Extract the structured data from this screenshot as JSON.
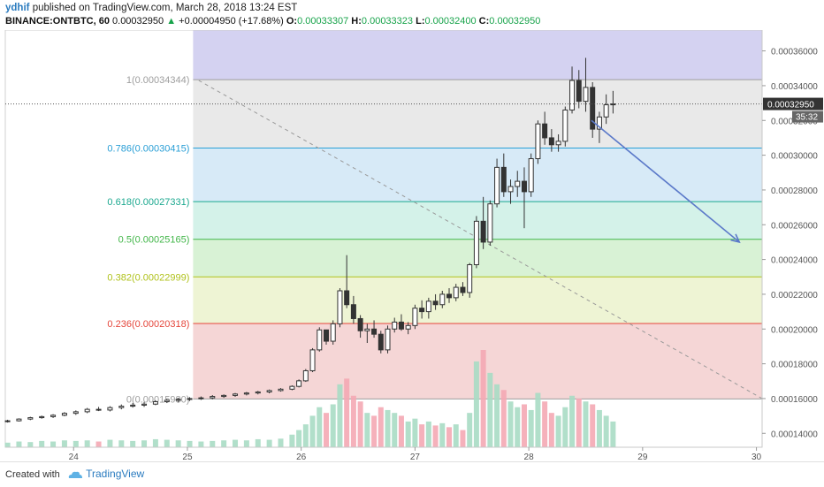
{
  "header": {
    "user": "ydhif",
    "published_text": "published on TradingView.com, March 28, 2018 13:24 EST",
    "symbol": "BINANCE:ONTBTC, 60",
    "last_price": "0.00032950",
    "change": "+0.00004950 (+17.68%)",
    "o_label": "O:",
    "o_value": "0.00033307",
    "h_label": "H:",
    "h_value": "0.00033323",
    "l_label": "L:",
    "l_value": "0.00032400",
    "c_label": "C:",
    "c_value": "0.00032950"
  },
  "footer": {
    "created_with": "Created with",
    "brand": "TradingView"
  },
  "chart_data": {
    "type": "candlestick",
    "y_range": [
      0.000132,
      0.000372
    ],
    "x_range": [
      23.4,
      30.05
    ],
    "y_ticks": [
      "0.00014000",
      "0.00016000",
      "0.00018000",
      "0.00020000",
      "0.00022000",
      "0.00024000",
      "0.00026000",
      "0.00028000",
      "0.00030000",
      "0.00032000",
      "0.00034000",
      "0.00036000"
    ],
    "y_tick_values": [
      0.00014,
      0.00016,
      0.00018,
      0.0002,
      0.00022,
      0.00024,
      0.00026,
      0.00028,
      0.0003,
      0.00032,
      0.00034,
      0.00036
    ],
    "x_ticks": [
      "24",
      "25",
      "26",
      "27",
      "28",
      "29",
      "30"
    ],
    "x_tick_values": [
      24,
      25,
      26,
      27,
      28,
      29,
      30
    ],
    "price_label": "0.00032950",
    "price_value": 0.0003295,
    "countdown_label": "35:32",
    "fibonacci": {
      "x_start": 25.05,
      "x_end": 30.05,
      "levels": [
        {
          "label": "1(0.00034344)",
          "value": 0.00034344,
          "color": "#9e9e9e"
        },
        {
          "label": "0.786(0.00030415)",
          "value": 0.00030415,
          "color": "#2a9fd6"
        },
        {
          "label": "0.618(0.00027331)",
          "value": 0.00027331,
          "color": "#1ba88f"
        },
        {
          "label": "0.5(0.00025165)",
          "value": 0.00025165,
          "color": "#42b649"
        },
        {
          "label": "0.382(0.00022999)",
          "value": 0.00022999,
          "color": "#b0c21c"
        },
        {
          "label": "0.236(0.00020318)",
          "value": 0.00020318,
          "color": "#e5463b"
        },
        {
          "label": "0(0.00015980)",
          "value": 0.0001598,
          "color": "#9e9e9e"
        }
      ],
      "zones": [
        {
          "top": 0.000372,
          "bottom": 0.00034344,
          "color": "#d4d2f1"
        },
        {
          "top": 0.00034344,
          "bottom": 0.00030415,
          "color": "#e9e9e9"
        },
        {
          "top": 0.00030415,
          "bottom": 0.00027331,
          "color": "#d7eaf7"
        },
        {
          "top": 0.00027331,
          "bottom": 0.00025165,
          "color": "#d4f2e9"
        },
        {
          "top": 0.00025165,
          "bottom": 0.00022999,
          "color": "#d8f2d5"
        },
        {
          "top": 0.00022999,
          "bottom": 0.00020318,
          "color": "#eef4d4"
        },
        {
          "top": 0.00020318,
          "bottom": 0.0001598,
          "color": "#f5d6d6"
        }
      ]
    },
    "trend_line": {
      "from": [
        25.1,
        0.000343
      ],
      "to": [
        30.05,
        0.00016
      ]
    },
    "arrow": {
      "from": [
        28.55,
        0.00032
      ],
      "to": [
        29.85,
        0.00025
      ]
    },
    "candles": [
      [
        23.42,
        0.0001468,
        0.0001478,
        0.0001462,
        0.0001472
      ],
      [
        23.52,
        0.0001472,
        0.0001486,
        0.0001468,
        0.0001482
      ],
      [
        23.62,
        0.0001482,
        0.0001495,
        0.0001476,
        0.000149
      ],
      [
        23.72,
        0.000149,
        0.0001502,
        0.0001484,
        0.0001496
      ],
      [
        23.82,
        0.0001496,
        0.000151,
        0.0001488,
        0.0001504
      ],
      [
        23.92,
        0.0001504,
        0.0001522,
        0.0001498,
        0.0001515
      ],
      [
        24.02,
        0.0001515,
        0.0001532,
        0.0001506,
        0.0001524
      ],
      [
        24.12,
        0.0001524,
        0.0001546,
        0.0001516,
        0.0001538
      ],
      [
        24.22,
        0.0001538,
        0.0001552,
        0.0001528,
        0.0001534
      ],
      [
        24.32,
        0.0001534,
        0.0001556,
        0.0001526,
        0.0001548
      ],
      [
        24.42,
        0.0001548,
        0.0001566,
        0.0001538,
        0.0001556
      ],
      [
        24.52,
        0.0001556,
        0.0001574,
        0.0001548,
        0.0001562
      ],
      [
        24.62,
        0.0001562,
        0.000158,
        0.0001552,
        0.0001568
      ],
      [
        24.72,
        0.0001568,
        0.000159,
        0.0001562,
        0.0001582
      ],
      [
        24.82,
        0.0001582,
        0.0001598,
        0.0001574,
        0.000159
      ],
      [
        24.92,
        0.000159,
        0.0001604,
        0.0001578,
        0.0001596
      ],
      [
        25.02,
        0.0001596,
        0.0001608,
        0.0001586,
        0.00016
      ],
      [
        25.12,
        0.00016,
        0.0001612,
        0.0001592,
        0.0001604
      ],
      [
        25.22,
        0.0001604,
        0.000162,
        0.0001596,
        0.0001612
      ],
      [
        25.32,
        0.0001612,
        0.0001624,
        0.0001604,
        0.0001618
      ],
      [
        25.42,
        0.0001618,
        0.0001632,
        0.000161,
        0.0001626
      ],
      [
        25.52,
        0.0001626,
        0.0001638,
        0.0001618,
        0.0001632
      ],
      [
        25.62,
        0.0001632,
        0.0001644,
        0.0001624,
        0.0001638
      ],
      [
        25.72,
        0.0001638,
        0.0001652,
        0.000163,
        0.0001646
      ],
      [
        25.82,
        0.0001646,
        0.000166,
        0.000164,
        0.0001654
      ],
      [
        25.92,
        0.0001654,
        0.0001676,
        0.0001648,
        0.000167
      ],
      [
        25.98,
        0.000167,
        0.000171,
        0.0001664,
        0.0001702
      ],
      [
        26.04,
        0.0001702,
        0.000177,
        0.0001696,
        0.000176
      ],
      [
        26.1,
        0.000176,
        0.000189,
        0.0001752,
        0.000188
      ],
      [
        26.16,
        0.000188,
        0.000201,
        0.000187,
        0.0001995
      ],
      [
        26.22,
        0.0001995,
        0.000199,
        0.000191,
        0.000193
      ],
      [
        26.28,
        0.000193,
        0.000205,
        0.000191,
        0.000203
      ],
      [
        26.34,
        0.000203,
        0.0002235,
        0.000201,
        0.000222
      ],
      [
        26.4,
        0.000222,
        0.0002425,
        0.000212,
        0.000214
      ],
      [
        26.46,
        0.000214,
        0.000219,
        0.000203,
        0.000206
      ],
      [
        26.52,
        0.000206,
        0.000208,
        0.000195,
        0.000199
      ],
      [
        26.58,
        0.000199,
        0.000203,
        0.000192,
        0.0002
      ],
      [
        26.64,
        0.0002,
        0.000205,
        0.000195,
        0.000197
      ],
      [
        26.7,
        0.000197,
        0.000199,
        0.000186,
        0.000188
      ],
      [
        26.76,
        0.000188,
        0.000202,
        0.000186,
        0.0002
      ],
      [
        26.82,
        0.0002,
        0.0002065,
        0.000198,
        0.000204
      ],
      [
        26.88,
        0.000204,
        0.0002085,
        0.000199,
        0.0002
      ],
      [
        26.94,
        0.0002,
        0.000204,
        0.000197,
        0.000202
      ],
      [
        27.0,
        0.000202,
        0.000214,
        0.0002,
        0.000212
      ],
      [
        27.06,
        0.000212,
        0.0002165,
        0.000206,
        0.00021
      ],
      [
        27.12,
        0.00021,
        0.000218,
        0.000206,
        0.000216
      ],
      [
        27.18,
        0.000216,
        0.00022,
        0.000211,
        0.000214
      ],
      [
        27.24,
        0.000214,
        0.000222,
        0.000212,
        0.00022
      ],
      [
        27.3,
        0.00022,
        0.0002235,
        0.000215,
        0.000218
      ],
      [
        27.36,
        0.000218,
        0.000226,
        0.000216,
        0.000224
      ],
      [
        27.42,
        0.000224,
        0.000227,
        0.000219,
        0.000221
      ],
      [
        27.48,
        0.000221,
        0.000238,
        0.000218,
        0.000237
      ],
      [
        27.54,
        0.000237,
        0.000265,
        0.000235,
        0.000262
      ],
      [
        27.6,
        0.000262,
        0.000276,
        0.000246,
        0.00025
      ],
      [
        27.66,
        0.00025,
        0.000274,
        0.000248,
        0.000272
      ],
      [
        27.72,
        0.000272,
        0.000298,
        0.00027,
        0.000293
      ],
      [
        27.78,
        0.000293,
        0.000301,
        0.000276,
        0.000279
      ],
      [
        27.84,
        0.000279,
        0.000286,
        0.000272,
        0.000282
      ],
      [
        27.9,
        0.000282,
        0.000291,
        0.000276,
        0.000285
      ],
      [
        27.96,
        0.000285,
        0.000293,
        0.000258,
        0.000279
      ],
      [
        28.02,
        0.000279,
        0.000301,
        0.000276,
        0.000298
      ],
      [
        28.08,
        0.000298,
        0.00032,
        0.000295,
        0.000318
      ],
      [
        28.14,
        0.000318,
        0.000325,
        0.000306,
        0.00031
      ],
      [
        28.2,
        0.00031,
        0.000315,
        0.000302,
        0.000306
      ],
      [
        28.26,
        0.000306,
        0.000312,
        0.000302,
        0.000308
      ],
      [
        28.32,
        0.000308,
        0.000328,
        0.000305,
        0.000326
      ],
      [
        28.38,
        0.000326,
        0.000351,
        0.000324,
        0.000343
      ],
      [
        28.44,
        0.000343,
        0.000349,
        0.000327,
        0.000331
      ],
      [
        28.5,
        0.000331,
        0.000356,
        0.000325,
        0.000339
      ],
      [
        28.56,
        0.000339,
        0.000342,
        0.00031,
        0.000315
      ],
      [
        28.62,
        0.000315,
        0.000325,
        0.000307,
        0.000322
      ],
      [
        28.68,
        0.000322,
        0.000335,
        0.000318,
        0.000329
      ],
      [
        28.74,
        0.000329,
        0.000337,
        0.000324,
        0.0003295
      ]
    ],
    "volume": [
      [
        23.42,
        8,
        1
      ],
      [
        23.52,
        10,
        1
      ],
      [
        23.62,
        9,
        1
      ],
      [
        23.72,
        11,
        1
      ],
      [
        23.82,
        10,
        1
      ],
      [
        23.92,
        12,
        1
      ],
      [
        24.02,
        11,
        1
      ],
      [
        24.12,
        12,
        1
      ],
      [
        24.22,
        10,
        0
      ],
      [
        24.32,
        13,
        1
      ],
      [
        24.42,
        12,
        1
      ],
      [
        24.52,
        11,
        1
      ],
      [
        24.62,
        12,
        1
      ],
      [
        24.72,
        14,
        1
      ],
      [
        24.82,
        13,
        1
      ],
      [
        24.92,
        12,
        1
      ],
      [
        25.02,
        11,
        1
      ],
      [
        25.12,
        10,
        1
      ],
      [
        25.22,
        11,
        1
      ],
      [
        25.32,
        12,
        1
      ],
      [
        25.42,
        13,
        1
      ],
      [
        25.52,
        12,
        1
      ],
      [
        25.62,
        14,
        1
      ],
      [
        25.72,
        13,
        1
      ],
      [
        25.82,
        15,
        1
      ],
      [
        25.92,
        22,
        1
      ],
      [
        25.98,
        30,
        1
      ],
      [
        26.04,
        40,
        1
      ],
      [
        26.1,
        55,
        1
      ],
      [
        26.16,
        70,
        1
      ],
      [
        26.22,
        60,
        0
      ],
      [
        26.28,
        75,
        1
      ],
      [
        26.34,
        110,
        1
      ],
      [
        26.4,
        120,
        0
      ],
      [
        26.46,
        90,
        0
      ],
      [
        26.52,
        80,
        0
      ],
      [
        26.58,
        60,
        1
      ],
      [
        26.64,
        55,
        0
      ],
      [
        26.7,
        70,
        0
      ],
      [
        26.76,
        65,
        1
      ],
      [
        26.82,
        60,
        1
      ],
      [
        26.88,
        55,
        0
      ],
      [
        26.94,
        45,
        1
      ],
      [
        27.0,
        50,
        1
      ],
      [
        27.06,
        40,
        0
      ],
      [
        27.12,
        45,
        1
      ],
      [
        27.18,
        38,
        0
      ],
      [
        27.24,
        42,
        1
      ],
      [
        27.3,
        35,
        0
      ],
      [
        27.36,
        40,
        1
      ],
      [
        27.42,
        30,
        0
      ],
      [
        27.48,
        60,
        1
      ],
      [
        27.54,
        150,
        1
      ],
      [
        27.6,
        170,
        0
      ],
      [
        27.66,
        130,
        1
      ],
      [
        27.72,
        110,
        1
      ],
      [
        27.78,
        100,
        0
      ],
      [
        27.84,
        80,
        1
      ],
      [
        27.9,
        70,
        1
      ],
      [
        27.96,
        75,
        0
      ],
      [
        28.02,
        65,
        1
      ],
      [
        28.08,
        95,
        1
      ],
      [
        28.14,
        80,
        0
      ],
      [
        28.2,
        60,
        0
      ],
      [
        28.26,
        55,
        1
      ],
      [
        28.32,
        70,
        1
      ],
      [
        28.38,
        90,
        1
      ],
      [
        28.44,
        85,
        0
      ],
      [
        28.5,
        80,
        1
      ],
      [
        28.56,
        75,
        0
      ],
      [
        28.62,
        65,
        1
      ],
      [
        28.68,
        55,
        1
      ],
      [
        28.74,
        45,
        1
      ]
    ]
  }
}
